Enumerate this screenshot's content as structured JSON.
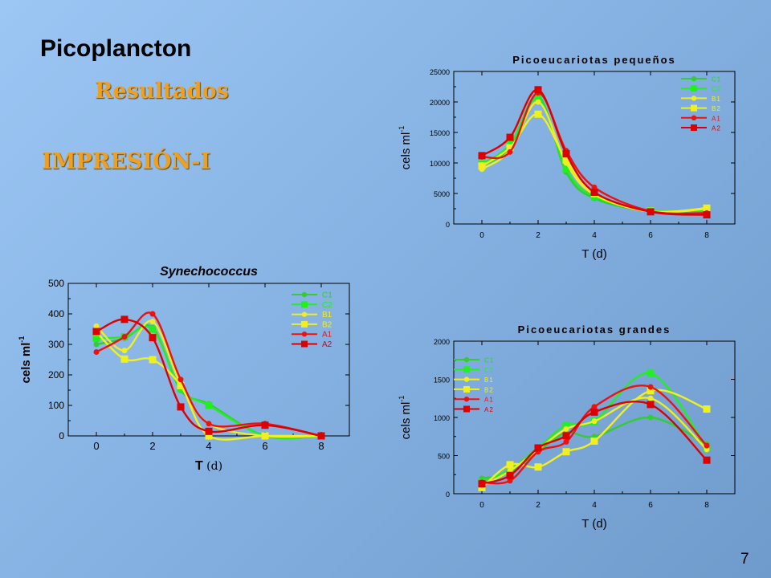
{
  "slide": {
    "title": "Picoplancton",
    "subtitle": "Resultados",
    "section": "IMPRESIÓN-I",
    "page_number": "7"
  },
  "colors": {
    "C1": "#33cc33",
    "C2": "#22ee22",
    "B1": "#eeee22",
    "B2": "#f0f020",
    "A1": "#ee1111",
    "A2": "#dd0000"
  },
  "chart_data": [
    {
      "id": "picoeuk-small",
      "type": "line",
      "title": "Picoeucariotas pequeños",
      "xlabel": "T (d)",
      "ylabel": "cels ml",
      "ylabel_sup": "-1",
      "xlim": [
        -1,
        9
      ],
      "ylim": [
        0,
        25000
      ],
      "xticks": [
        0,
        2,
        4,
        6,
        8
      ],
      "yticks": [
        0,
        5000,
        10000,
        15000,
        20000,
        25000
      ],
      "legend_position": "top-right",
      "x": [
        0,
        1,
        2,
        3,
        4,
        6,
        8
      ],
      "series": [
        {
          "name": "C1",
          "marker": "circle",
          "values": [
            9500,
            12500,
            21000,
            8500,
            4200,
            2100,
            2200
          ]
        },
        {
          "name": "C2",
          "marker": "square",
          "values": [
            9800,
            13000,
            20500,
            9000,
            4500,
            2200,
            2300
          ]
        },
        {
          "name": "B1",
          "marker": "circle",
          "values": [
            9000,
            12000,
            20000,
            10000,
            4800,
            2000,
            2500
          ]
        },
        {
          "name": "B2",
          "marker": "square",
          "values": [
            9500,
            12500,
            18000,
            10500,
            5000,
            2100,
            2600
          ]
        },
        {
          "name": "A1",
          "marker": "circle",
          "values": [
            11000,
            11800,
            21500,
            12000,
            6000,
            2100,
            1800
          ]
        },
        {
          "name": "A2",
          "marker": "square",
          "values": [
            11200,
            14200,
            22000,
            11500,
            5200,
            2000,
            1500
          ]
        }
      ]
    },
    {
      "id": "synechococcus",
      "type": "line",
      "title": "Synechococcus",
      "xlabel": "T",
      "xlabel_unit": "(d)",
      "ylabel": "cels ml",
      "ylabel_sup": "-1",
      "xlim": [
        -1,
        9
      ],
      "ylim": [
        0,
        500
      ],
      "xticks": [
        0,
        2,
        4,
        6,
        8
      ],
      "yticks": [
        0,
        100,
        200,
        300,
        400,
        500
      ],
      "legend_position": "top-right",
      "x": [
        0,
        1,
        2,
        3,
        4,
        6,
        8
      ],
      "series": [
        {
          "name": "C1",
          "marker": "circle",
          "values": [
            300,
            320,
            355,
            150,
            105,
            0,
            0
          ]
        },
        {
          "name": "C2",
          "marker": "square",
          "values": [
            320,
            325,
            350,
            155,
            100,
            0,
            0
          ]
        },
        {
          "name": "B1",
          "marker": "circle",
          "values": [
            360,
            280,
            375,
            170,
            40,
            0,
            0
          ]
        },
        {
          "name": "B2",
          "marker": "square",
          "values": [
            340,
            252,
            250,
            165,
            0,
            0,
            0
          ]
        },
        {
          "name": "A1",
          "marker": "circle",
          "values": [
            275,
            325,
            400,
            185,
            40,
            40,
            0
          ]
        },
        {
          "name": "A2",
          "marker": "square",
          "values": [
            342,
            382,
            322,
            95,
            15,
            35,
            0
          ]
        }
      ]
    },
    {
      "id": "picoeuk-large",
      "type": "line",
      "title": "Picoeucariotas grandes",
      "xlabel": "T (d)",
      "ylabel": "cels ml",
      "ylabel_sup": "-1",
      "xlim": [
        -1,
        9
      ],
      "ylim": [
        0,
        2000
      ],
      "xticks": [
        0,
        2,
        4,
        6,
        8
      ],
      "yticks": [
        0,
        500,
        1000,
        1500,
        2000
      ],
      "legend_position": "top-left",
      "x": [
        0,
        1,
        2,
        3,
        4,
        6,
        8
      ],
      "series": [
        {
          "name": "C1",
          "marker": "circle",
          "values": [
            200,
            280,
            550,
            800,
            750,
            1000,
            650
          ]
        },
        {
          "name": "C2",
          "marker": "square",
          "values": [
            150,
            320,
            600,
            900,
            950,
            1580,
            600
          ]
        },
        {
          "name": "B1",
          "marker": "circle",
          "values": [
            100,
            300,
            580,
            850,
            950,
            1250,
            580
          ]
        },
        {
          "name": "B2",
          "marker": "square",
          "values": [
            80,
            380,
            350,
            550,
            690,
            1350,
            1110
          ]
        },
        {
          "name": "A1",
          "marker": "circle",
          "values": [
            150,
            170,
            550,
            680,
            1140,
            1400,
            630
          ]
        },
        {
          "name": "A2",
          "marker": "square",
          "values": [
            130,
            240,
            600,
            760,
            1070,
            1170,
            440
          ]
        }
      ]
    }
  ]
}
